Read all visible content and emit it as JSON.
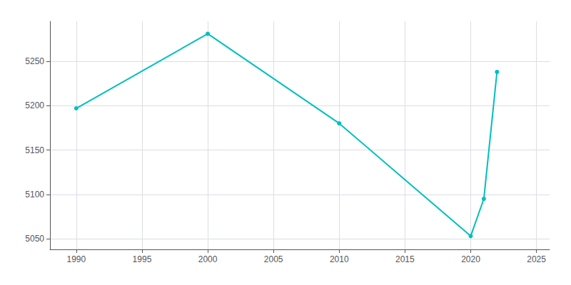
{
  "chart_data": {
    "type": "line",
    "x": [
      1990,
      2000,
      2010,
      2020,
      2021,
      2022
    ],
    "values": [
      5197,
      5281,
      5180,
      5053,
      5095,
      5238
    ],
    "color": "#00BFBF",
    "marker": "circle",
    "xlim": [
      1988,
      2026
    ],
    "xticks": [
      1990,
      1995,
      2000,
      2005,
      2010,
      2015,
      2020,
      2025
    ],
    "ylim": [
      5038,
      5295
    ],
    "yticks": [
      5050,
      5100,
      5150,
      5200,
      5250
    ],
    "grid": true
  }
}
